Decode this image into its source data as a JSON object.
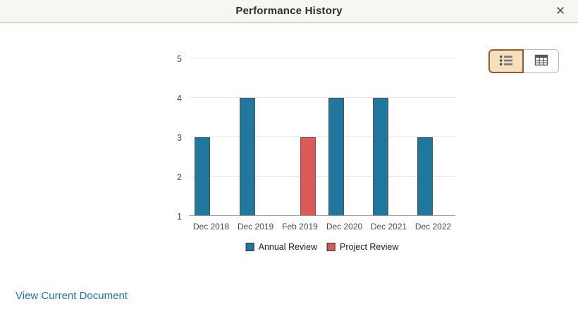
{
  "header": {
    "title": "Performance History",
    "close_icon": "✕"
  },
  "view_toggle": {
    "selected": "chart",
    "selected_bg": "#f5e0bc",
    "selected_border": "#a0572b",
    "buttons": [
      {
        "id": "chart",
        "icon": "list-icon"
      },
      {
        "id": "grid",
        "icon": "table-icon"
      }
    ]
  },
  "chart_data": {
    "type": "bar",
    "title": "",
    "xlabel": "",
    "ylabel": "",
    "categories": [
      "Dec 2018",
      "Dec 2019",
      "Feb 2019",
      "Dec 2020",
      "Dec 2021",
      "Dec 2022"
    ],
    "series": [
      {
        "name": "Annual Review",
        "color": "#21789e",
        "border": "#4c545a",
        "values": [
          3,
          4,
          null,
          4,
          4,
          3
        ]
      },
      {
        "name": "Project Review",
        "color": "#d95a56",
        "border": "#8c4a47",
        "values": [
          null,
          null,
          3,
          null,
          null,
          null
        ]
      }
    ],
    "ylim": [
      1,
      5
    ],
    "yticks": [
      1,
      2,
      3,
      4,
      5
    ],
    "grid": true,
    "legend_position": "bottom"
  },
  "footer": {
    "link": "View Current Document",
    "link_color": "#1a6fc4"
  }
}
